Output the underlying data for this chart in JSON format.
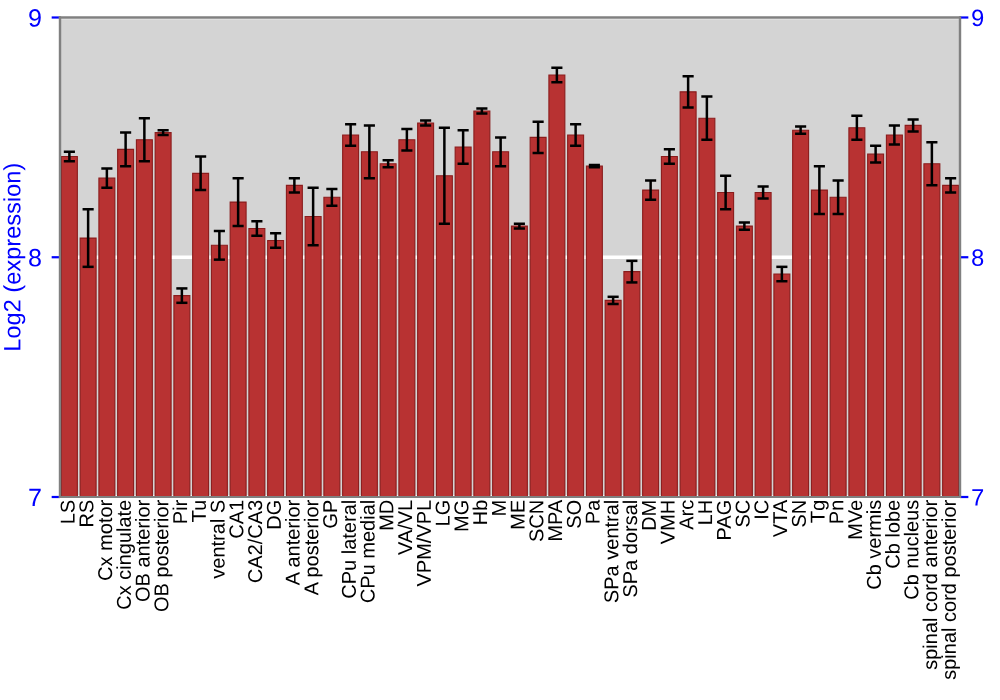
{
  "chart_data": {
    "type": "bar",
    "ylabel": "Log2 (expression)",
    "categories": [
      "LS",
      "RS",
      "Cx motor",
      "Cx cingulate",
      "OB anterior",
      "OB posterior",
      "Pir",
      "Tu",
      "ventral S",
      "CA1",
      "CA2/CA3",
      "DG",
      "A anterior",
      "A posterior",
      "GP",
      "CPu lateral",
      "CPu medial",
      "MD",
      "VA/VL",
      "VPM/VPL",
      "LG",
      "MG",
      "Hb",
      "M",
      "ME",
      "SCN",
      "MPA",
      "SO",
      "Pa",
      "SPa ventral",
      "SPa dorsal",
      "DM",
      "VMH",
      "Arc",
      "LH",
      "PAG",
      "SC",
      "IC",
      "VTA",
      "SN",
      "Tg",
      "Pn",
      "MVe",
      "Cb vermis",
      "Cb lobe",
      "Cb nucleus",
      "spinal cord anterior",
      "spinal cord posterior"
    ],
    "values": [
      8.42,
      8.08,
      8.33,
      8.45,
      8.49,
      8.52,
      7.84,
      8.35,
      8.05,
      8.23,
      8.12,
      8.07,
      8.3,
      8.17,
      8.25,
      8.51,
      8.44,
      8.39,
      8.49,
      8.56,
      8.34,
      8.46,
      8.61,
      8.44,
      8.13,
      8.5,
      8.76,
      8.51,
      8.38,
      7.82,
      7.94,
      8.28,
      8.42,
      8.69,
      8.58,
      8.27,
      8.13,
      8.27,
      7.93,
      8.53,
      8.28,
      8.25,
      8.54,
      8.43,
      8.51,
      8.55,
      8.39,
      8.3
    ],
    "errors": [
      0.02,
      0.12,
      0.04,
      0.07,
      0.09,
      0.01,
      0.03,
      0.07,
      0.06,
      0.1,
      0.03,
      0.03,
      0.03,
      0.12,
      0.035,
      0.045,
      0.11,
      0.015,
      0.045,
      0.01,
      0.2,
      0.07,
      0.01,
      0.06,
      0.01,
      0.065,
      0.03,
      0.045,
      0.005,
      0.015,
      0.045,
      0.04,
      0.03,
      0.065,
      0.09,
      0.07,
      0.015,
      0.025,
      0.03,
      0.015,
      0.1,
      0.07,
      0.05,
      0.035,
      0.04,
      0.025,
      0.09,
      0.03
    ],
    "color": "#b83232",
    "ylim": [
      7,
      9
    ],
    "yticks": [
      7,
      8,
      9
    ],
    "y2lim": [
      7,
      9
    ],
    "y2ticks": [
      7,
      8,
      9
    ],
    "grid": "y",
    "legend": false
  }
}
